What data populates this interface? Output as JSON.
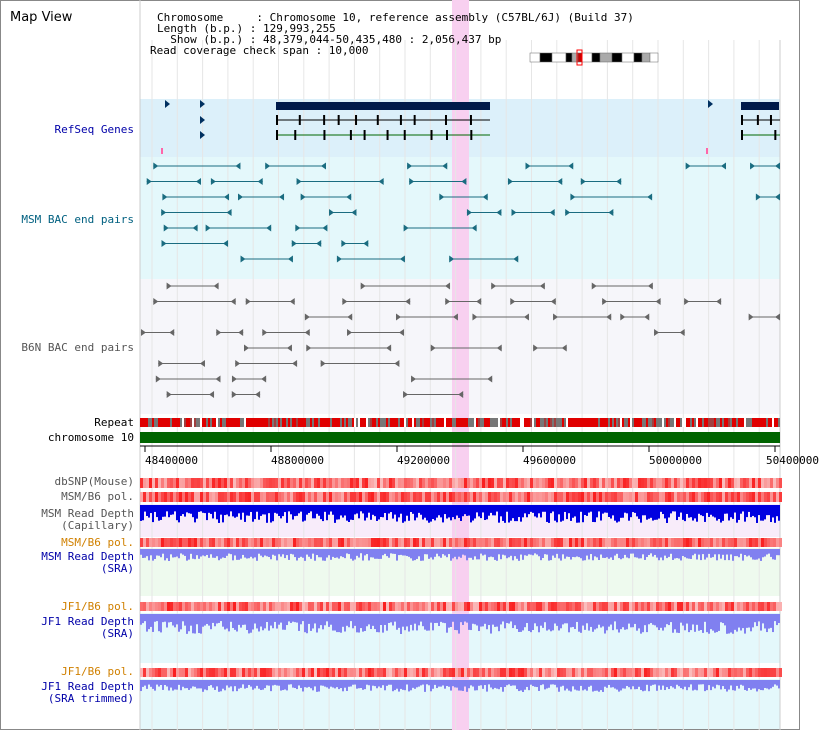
{
  "title": "Map View",
  "info": {
    "chromosome": "Chromosome     : Chromosome 10, reference assembly (C57BL/6J) (Build 37)",
    "length": "Length (b.p.) : 129,993,255",
    "show": "  Show (b.p.) : 48,379,044-50,435,480 : 2,056,437 bp",
    "span": "Read coverage check span : 10,000"
  },
  "tracks": {
    "refseq": "RefSeq Genes",
    "msm_bac": "MSM BAC end pairs",
    "b6n_bac": "B6N BAC end pairs",
    "repeat": "Repeat",
    "chromosome": "chromosome 10",
    "dbsnp": "dbSNP(Mouse)",
    "msm_b6_pol_1": "MSM/B6 pol.",
    "msm_depth_cap_1": "MSM Read Depth",
    "msm_depth_cap_2": "(Capillary)",
    "msm_b6_pol_2": "MSM/B6 pol.",
    "msm_depth_sra_1": "MSM Read Depth",
    "msm_depth_sra_2": "(SRA)",
    "jf1_pol_1": "JF1/B6 pol.",
    "jf1_depth_sra_1": "JF1 Read Depth",
    "jf1_depth_sra_2": "(SRA)",
    "jf1_pol_2": "JF1/B6 pol.",
    "jf1_trim_1": "JF1 Read Depth",
    "jf1_trim_2": "(SRA trimmed)"
  },
  "axis": {
    "ticks": [
      "48400000",
      "48800000",
      "49200000",
      "49600000",
      "50000000",
      "50400000"
    ]
  },
  "colors": {
    "refseq_bg": "#dcf0fa",
    "msm_bac_bg": "#e4f8fb",
    "b6n_bac_bg": "#f4f4f8",
    "highlight": "#f8d0f0",
    "chrom_bar": "#006400",
    "depth_blue": "#0000e0",
    "depth_light": "#8080f0"
  }
}
